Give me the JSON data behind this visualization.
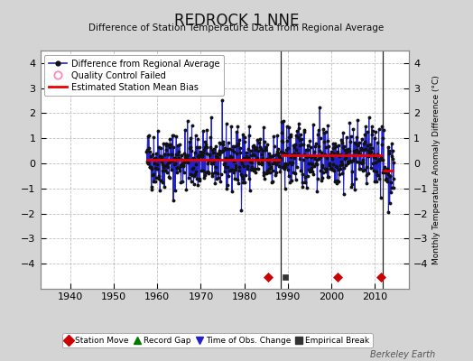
{
  "title": "REDROCK 1 NNE",
  "subtitle": "Difference of Station Temperature Data from Regional Average",
  "ylabel_right": "Monthly Temperature Anomaly Difference (°C)",
  "xlim": [
    1933,
    2018
  ],
  "ylim_main": [
    -5,
    4.5
  ],
  "yticks": [
    -4,
    -3,
    -2,
    -1,
    0,
    1,
    2,
    3,
    4
  ],
  "bg_color": "#d4d4d4",
  "plot_bg_color": "#ffffff",
  "grid_color": "#c0c0c0",
  "data_start_year": 1957.5,
  "data_end_year": 2014.5,
  "segment_breaks": [
    1988.5,
    2012.0
  ],
  "segment_biases": [
    0.15,
    0.32,
    -0.28
  ],
  "station_moves": [
    1985.5,
    2001.5,
    2011.5
  ],
  "empirical_breaks": [
    1989.5
  ],
  "watermark": "Berkeley Earth",
  "bottom_band_y": -4.55,
  "marker_band_bottom": -5.0,
  "seed": 42
}
